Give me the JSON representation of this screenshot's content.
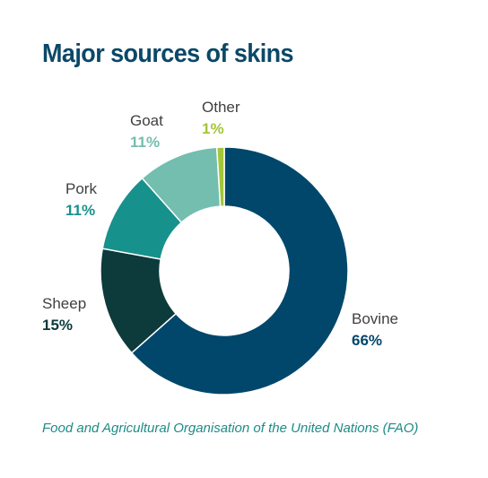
{
  "chart_data": {
    "type": "pie",
    "variant": "donut",
    "title": "Major sources of skins",
    "source": "Food and Agricultural Organisation of the United Nations (FAO)",
    "slices": [
      {
        "label": "Bovine",
        "value": 66,
        "value_label": "66%",
        "color": "#01476b",
        "value_color": "#01476b"
      },
      {
        "label": "Sheep",
        "value": 15,
        "value_label": "15%",
        "color": "#0d3a3b",
        "value_color": "#0d3a3b"
      },
      {
        "label": "Pork",
        "value": 11,
        "value_label": "11%",
        "color": "#17918c",
        "value_color": "#17918c"
      },
      {
        "label": "Goat",
        "value": 11,
        "value_label": "11%",
        "color": "#73beaf",
        "value_color": "#73beaf"
      },
      {
        "label": "Other",
        "value": 1,
        "value_label": "1%",
        "color": "#a4c639",
        "value_color": "#a4c639"
      }
    ],
    "legend": "none"
  }
}
